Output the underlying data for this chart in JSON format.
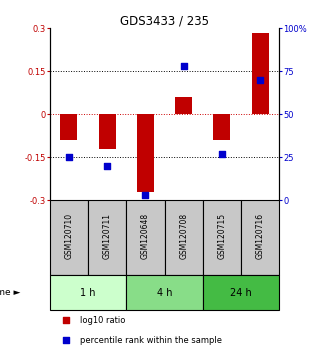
{
  "title": "GDS3433 / 235",
  "samples": [
    "GSM120710",
    "GSM120711",
    "GSM120648",
    "GSM120708",
    "GSM120715",
    "GSM120716"
  ],
  "log10_ratio": [
    -0.09,
    -0.12,
    -0.27,
    0.06,
    -0.09,
    0.285
  ],
  "percentile_rank": [
    25,
    20,
    3,
    78,
    27,
    70
  ],
  "ylim_left": [
    -0.3,
    0.3
  ],
  "ylim_right": [
    0,
    100
  ],
  "yticks_left": [
    -0.3,
    -0.15,
    0,
    0.15,
    0.3
  ],
  "yticks_right": [
    0,
    25,
    50,
    75,
    100
  ],
  "ytick_labels_right": [
    "0",
    "25",
    "50",
    "75",
    "100%"
  ],
  "bar_color": "#c00000",
  "dot_color": "#0000cc",
  "grid_color": "#000000",
  "zero_line_color": "#cc0000",
  "time_groups": [
    {
      "label": "1 h",
      "start": 0,
      "end": 2,
      "color": "#ccffcc"
    },
    {
      "label": "4 h",
      "start": 2,
      "end": 4,
      "color": "#88dd88"
    },
    {
      "label": "24 h",
      "start": 4,
      "end": 6,
      "color": "#44bb44"
    }
  ],
  "sample_box_color": "#c8c8c8",
  "background_color": "#ffffff",
  "bar_width": 0.45,
  "dot_size": 18,
  "legend_items": [
    {
      "label": "log10 ratio",
      "color": "#c00000"
    },
    {
      "label": "percentile rank within the sample",
      "color": "#0000cc"
    }
  ]
}
